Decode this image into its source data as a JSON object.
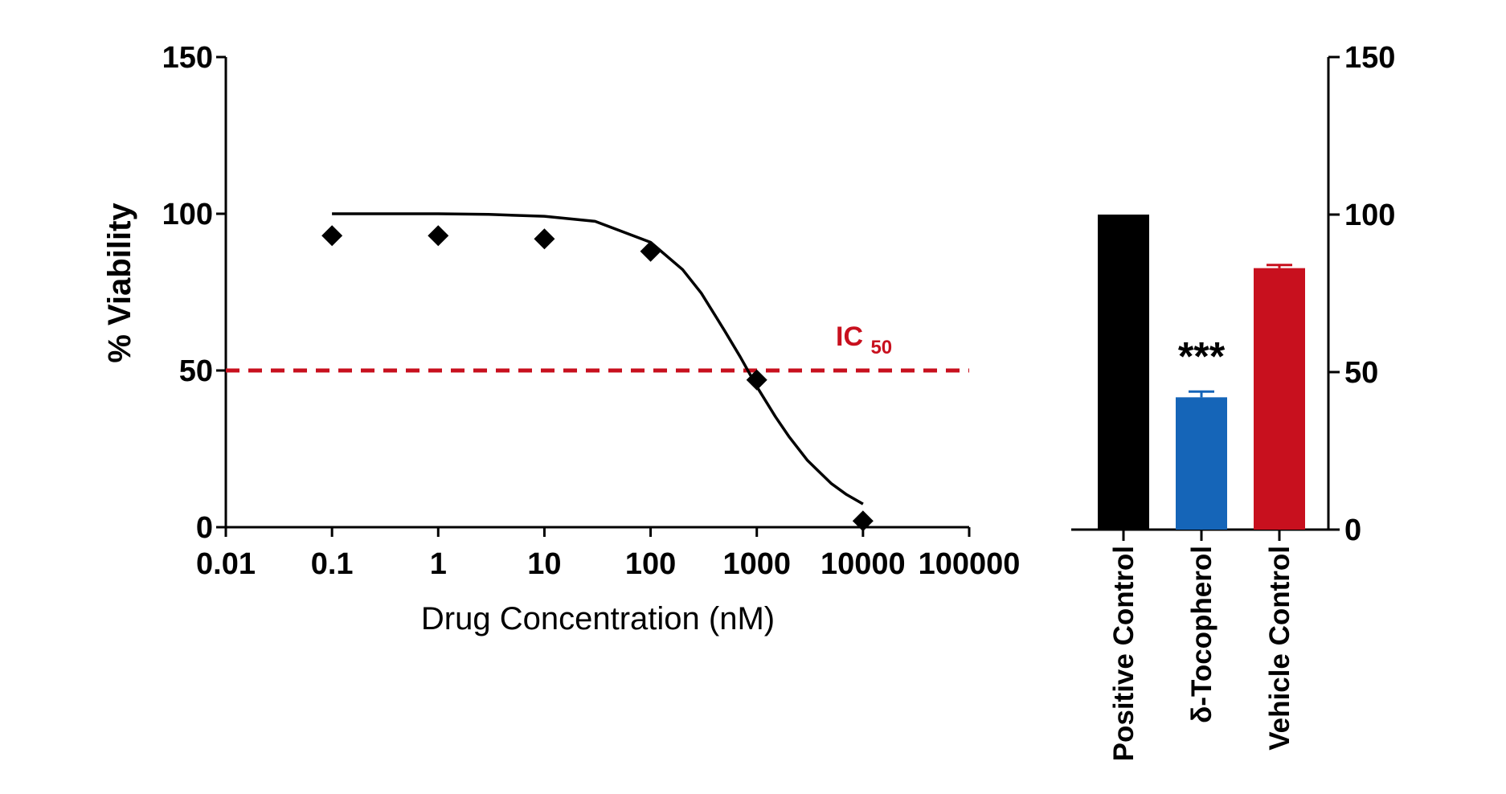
{
  "chart_data": [
    {
      "type": "scatter",
      "xlabel": "Drug Concentration (nM)",
      "ylabel": "% Viability",
      "x_scale": "log",
      "xlim": [
        0.01,
        100000
      ],
      "ylim": [
        0,
        150
      ],
      "x_ticks": [
        "0.01",
        "0.1",
        "1",
        "10",
        "100",
        "1000",
        "10000",
        "100000"
      ],
      "y_ticks": [
        "0",
        "50",
        "100",
        "150"
      ],
      "series": [
        {
          "type": "scatter",
          "marker": "diamond",
          "color": "#000000",
          "x": [
            0.1,
            1,
            10,
            100,
            1000,
            10000
          ],
          "y": [
            93,
            93,
            92,
            88,
            47,
            2
          ]
        },
        {
          "type": "line",
          "fit": "sigmoidal dose-response",
          "color": "#000000",
          "x": [
            0.1,
            0.3,
            1,
            3,
            10,
            30,
            100,
            200,
            300,
            500,
            700,
            1000,
            1500,
            2000,
            3000,
            5000,
            7000,
            10000
          ],
          "y": [
            100,
            100,
            100,
            99.8,
            99.2,
            97.6,
            90.9,
            82.2,
            74.7,
            62.6,
            54.3,
            44.9,
            35.2,
            29.0,
            21.3,
            14.0,
            10.4,
            7.4
          ]
        }
      ],
      "reference_line": {
        "y": 50,
        "style": "dashed",
        "color": "#c8101e",
        "label_main": "IC",
        "label_sub": "50"
      }
    },
    {
      "type": "bar",
      "categories": [
        "Positive Control",
        "δ-Tocopherol",
        "Vehicle Control"
      ],
      "values": [
        100,
        42,
        83
      ],
      "errors": [
        0,
        1.8,
        1.0
      ],
      "colors": [
        "#000000",
        "#1565b8",
        "#c8101e"
      ],
      "annotations": [
        "",
        "***",
        ""
      ],
      "ylim": [
        0,
        150
      ],
      "y_ticks": [
        "0",
        "50",
        "100",
        "150"
      ],
      "y_axis_side": "right"
    }
  ]
}
